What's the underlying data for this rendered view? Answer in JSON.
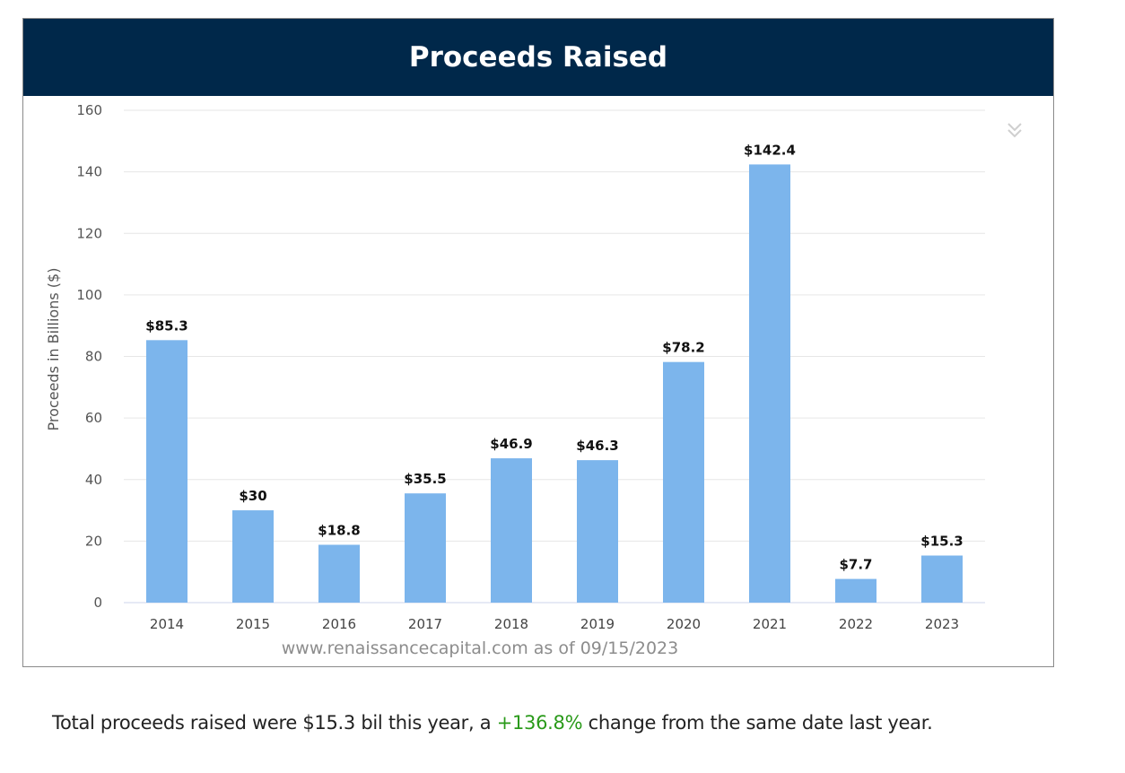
{
  "header": {
    "title": "Proceeds Raised"
  },
  "credit": "www.renaissancecapital.com as of 09/15/2023",
  "summary": {
    "prefix": "Total proceeds raised were $15.3 bil this year, a ",
    "change": "+136.8%",
    "suffix": " change from the same date last year."
  },
  "colors": {
    "header_bg": "#00284a",
    "bar": "#7cb5ec",
    "change_positive": "#2a9a1a"
  },
  "icons": {
    "menu": "double-chevron-down-icon"
  },
  "chart_data": {
    "type": "bar",
    "title": "Proceeds Raised",
    "xlabel": "",
    "ylabel": "Proceeds in Billions ($)",
    "categories": [
      "2014",
      "2015",
      "2016",
      "2017",
      "2018",
      "2019",
      "2020",
      "2021",
      "2022",
      "2023"
    ],
    "values": [
      85.3,
      30,
      18.8,
      35.5,
      46.9,
      46.3,
      78.2,
      142.4,
      7.7,
      15.3
    ],
    "data_labels": [
      "$85.3",
      "$30",
      "$18.8",
      "$35.5",
      "$46.9",
      "$46.3",
      "$78.2",
      "$142.4",
      "$7.7",
      "$15.3"
    ],
    "ylim": [
      0,
      160
    ],
    "yticks": [
      0,
      20,
      40,
      60,
      80,
      100,
      120,
      140,
      160
    ],
    "grid": true,
    "legend": "none"
  }
}
